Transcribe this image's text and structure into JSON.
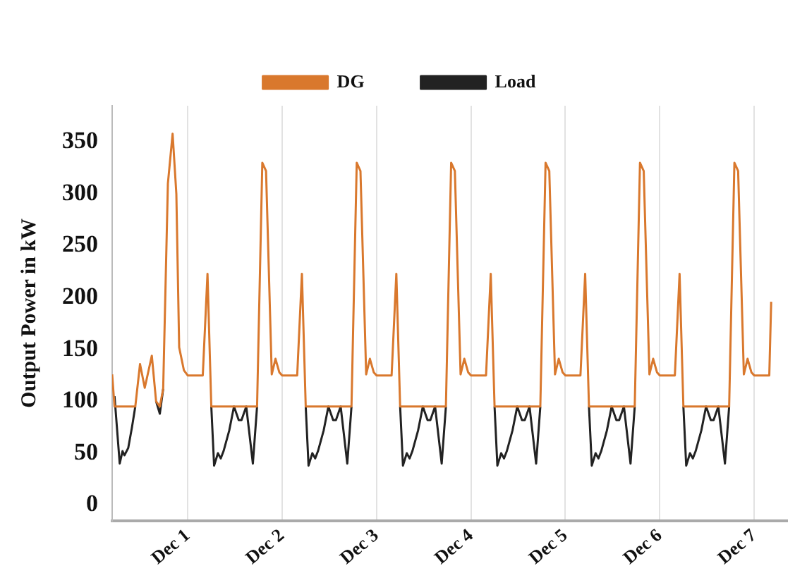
{
  "chart_data": {
    "type": "line",
    "ylabel": "Output Power in kW",
    "legend": "top",
    "grid": "x",
    "xlim": [
      "--11-30T04:48",
      "--12-07T08:24"
    ],
    "ylim": [
      -15,
      385
    ],
    "xticks": [
      {
        "value": "--12-01",
        "label": "Dec 1"
      },
      {
        "value": "--12-02",
        "label": "Dec 2"
      },
      {
        "value": "--12-03",
        "label": "Dec 3"
      },
      {
        "value": "--12-04",
        "label": "Dec 4"
      },
      {
        "value": "--12-05",
        "label": "Dec 5"
      },
      {
        "value": "--12-06",
        "label": "Dec 6"
      },
      {
        "value": "--12-07",
        "label": "Dec 7"
      }
    ],
    "yticks": [
      0,
      50,
      100,
      150,
      200,
      250,
      300,
      350
    ],
    "series": [
      {
        "name": "DG",
        "color": "#d9782d",
        "x": [
          "--11-30T04:48",
          "--11-30T05:24",
          "--11-30T10:41",
          "--11-30T11:53",
          "--11-30T13:05",
          "--11-30T14:53",
          "--11-30T15:58",
          "--11-30T16:55",
          "--11-30T17:46",
          "--11-30T18:58",
          "--11-30T20:10",
          "--11-30T21:07",
          "--11-30T21:50",
          "--11-30T23:02",
          "--12-01T00:00",
          "--12-01T03:50",
          "--12-01T05:02",
          "--12-01T06:00",
          "--12-01T17:38",
          "--12-01T18:58",
          "--12-01T19:55",
          "--12-01T21:22",
          "--12-01T22:19",
          "--12-01T23:17",
          "--12-02T00:00",
          "--12-02T03:50",
          "--12-02T05:02",
          "--12-02T06:00",
          "--12-02T17:38",
          "--12-02T18:58",
          "--12-02T19:55",
          "--12-02T21:22",
          "--12-02T22:19",
          "--12-02T23:17",
          "--12-03T00:00",
          "--12-03T03:50",
          "--12-03T05:02",
          "--12-03T06:00",
          "--12-03T17:38",
          "--12-03T18:58",
          "--12-03T19:55",
          "--12-03T21:22",
          "--12-03T22:19",
          "--12-03T23:17",
          "--12-04T00:00",
          "--12-04T03:50",
          "--12-04T05:02",
          "--12-04T06:00",
          "--12-04T17:38",
          "--12-04T18:58",
          "--12-04T19:55",
          "--12-04T21:22",
          "--12-04T22:19",
          "--12-04T23:17",
          "--12-05T00:00",
          "--12-05T03:50",
          "--12-05T05:02",
          "--12-05T06:00",
          "--12-05T17:38",
          "--12-05T18:58",
          "--12-05T19:55",
          "--12-05T21:22",
          "--12-05T22:19",
          "--12-05T23:17",
          "--12-06T00:00",
          "--12-06T03:50",
          "--12-06T05:02",
          "--12-06T06:00",
          "--12-06T17:38",
          "--12-06T18:58",
          "--12-06T19:55",
          "--12-06T21:22",
          "--12-06T22:19",
          "--12-06T23:17",
          "--12-07T00:00",
          "--12-07T03:50",
          "--12-07T04:19"
        ],
        "values": [
          126,
          95,
          95,
          136,
          113,
          144,
          100,
          95,
          112,
          310,
          358,
          300,
          152,
          130,
          125,
          125,
          223,
          95,
          95,
          330,
          322,
          126,
          141,
          128,
          125,
          125,
          223,
          95,
          95,
          330,
          322,
          126,
          141,
          128,
          125,
          125,
          223,
          95,
          95,
          330,
          322,
          126,
          141,
          128,
          125,
          125,
          223,
          95,
          95,
          330,
          322,
          126,
          141,
          128,
          125,
          125,
          223,
          95,
          95,
          330,
          322,
          126,
          141,
          128,
          125,
          125,
          223,
          95,
          95,
          330,
          322,
          126,
          141,
          128,
          125,
          125,
          196
        ]
      },
      {
        "name": "Load",
        "color": "#222222",
        "x": [
          "--11-30T05:24",
          "--11-30T06:43",
          "--11-30T07:26",
          "--11-30T07:55",
          "--11-30T08:53",
          "--11-30T09:50",
          "--11-30T10:41",
          "--11-30T13:12",
          "--11-30T15:58",
          "--11-30T16:55",
          "--11-30T17:46",
          "--11-30T19:12",
          "--12-01T06:00",
          "--12-01T06:43",
          "--12-01T07:41",
          "--12-01T08:24",
          "--12-01T09:07",
          "--12-01T10:34",
          "--12-01T11:46",
          "--12-01T12:58",
          "--12-01T13:41",
          "--12-01T14:53",
          "--12-01T16:34",
          "--12-01T17:38",
          "--12-01T19:12",
          "--12-02T06:00",
          "--12-02T06:43",
          "--12-02T07:41",
          "--12-02T08:24",
          "--12-02T09:07",
          "--12-02T10:34",
          "--12-02T11:46",
          "--12-02T12:58",
          "--12-02T13:41",
          "--12-02T14:53",
          "--12-02T16:34",
          "--12-02T17:38",
          "--12-02T19:12",
          "--12-03T06:00",
          "--12-03T06:43",
          "--12-03T07:41",
          "--12-03T08:24",
          "--12-03T09:07",
          "--12-03T10:34",
          "--12-03T11:46",
          "--12-03T12:58",
          "--12-03T13:41",
          "--12-03T14:53",
          "--12-03T16:34",
          "--12-03T17:38",
          "--12-03T19:12",
          "--12-04T06:00",
          "--12-04T06:43",
          "--12-04T07:41",
          "--12-04T08:24",
          "--12-04T09:07",
          "--12-04T10:34",
          "--12-04T11:46",
          "--12-04T12:58",
          "--12-04T13:41",
          "--12-04T14:53",
          "--12-04T16:34",
          "--12-04T17:38",
          "--12-04T19:12",
          "--12-05T06:00",
          "--12-05T06:43",
          "--12-05T07:41",
          "--12-05T08:24",
          "--12-05T09:07",
          "--12-05T10:34",
          "--12-05T11:46",
          "--12-05T12:58",
          "--12-05T13:41",
          "--12-05T14:53",
          "--12-05T16:34",
          "--12-05T17:38",
          "--12-05T19:12",
          "--12-06T06:00",
          "--12-06T06:43",
          "--12-06T07:41",
          "--12-06T08:24",
          "--12-06T09:07",
          "--12-06T10:34",
          "--12-06T11:46",
          "--12-06T12:58",
          "--12-06T13:41",
          "--12-06T14:53",
          "--12-06T16:34",
          "--12-06T17:38"
        ],
        "values": [
          105,
          40,
          52,
          48,
          55,
          75,
          95,
          null,
          100,
          88,
          112,
          null,
          95,
          38,
          50,
          45,
          52,
          72,
          95,
          82,
          82,
          95,
          40,
          95,
          null,
          95,
          38,
          50,
          45,
          52,
          72,
          95,
          82,
          82,
          95,
          40,
          95,
          null,
          95,
          38,
          50,
          45,
          52,
          72,
          95,
          82,
          82,
          95,
          40,
          95,
          null,
          95,
          38,
          50,
          45,
          52,
          72,
          95,
          82,
          82,
          95,
          40,
          95,
          null,
          95,
          38,
          50,
          45,
          52,
          72,
          95,
          82,
          82,
          95,
          40,
          95,
          null,
          95,
          38,
          50,
          45,
          52,
          72,
          95,
          82,
          82,
          95,
          40,
          95
        ]
      }
    ]
  }
}
